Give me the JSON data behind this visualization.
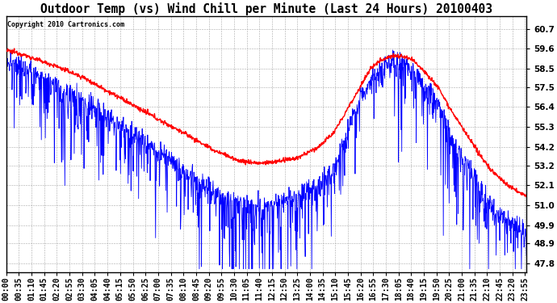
{
  "title": "Outdoor Temp (vs) Wind Chill per Minute (Last 24 Hours) 20100403",
  "copyright": "Copyright 2010 Cartronics.com",
  "ylim": [
    47.3,
    61.4
  ],
  "yticks": [
    47.8,
    48.9,
    49.9,
    51.0,
    52.1,
    53.2,
    54.2,
    55.3,
    56.4,
    57.5,
    58.5,
    59.6,
    60.7
  ],
  "x_labels": [
    "00:00",
    "00:35",
    "01:10",
    "01:45",
    "02:20",
    "02:55",
    "03:30",
    "04:05",
    "04:40",
    "05:15",
    "05:50",
    "06:25",
    "07:00",
    "07:35",
    "08:10",
    "08:45",
    "09:20",
    "09:55",
    "10:30",
    "11:05",
    "11:40",
    "12:15",
    "12:50",
    "13:25",
    "14:00",
    "14:35",
    "15:10",
    "15:45",
    "16:20",
    "16:55",
    "17:30",
    "18:05",
    "18:40",
    "19:15",
    "19:50",
    "20:25",
    "21:00",
    "21:35",
    "22:10",
    "22:45",
    "23:20",
    "23:55"
  ],
  "outdoor_color": "#FF0000",
  "windchill_color": "#0000FF",
  "background_color": "#FFFFFF",
  "grid_color": "#AAAAAA",
  "title_fontsize": 10.5,
  "tick_fontsize": 7,
  "outdoor_lw": 1.0,
  "windchill_lw": 0.6,
  "outdoor_ctrl_x": [
    0.0,
    0.02,
    0.06,
    0.1,
    0.15,
    0.2,
    0.25,
    0.3,
    0.34,
    0.37,
    0.4,
    0.42,
    0.44,
    0.46,
    0.49,
    0.52,
    0.56,
    0.6,
    0.63,
    0.66,
    0.68,
    0.7,
    0.72,
    0.74,
    0.76,
    0.78,
    0.8,
    0.83,
    0.86,
    0.9,
    0.93,
    0.96,
    0.98,
    1.0
  ],
  "outdoor_ctrl_y": [
    59.5,
    59.4,
    59.0,
    58.6,
    58.0,
    57.2,
    56.4,
    55.6,
    55.0,
    54.5,
    54.0,
    53.8,
    53.5,
    53.4,
    53.3,
    53.4,
    53.6,
    54.2,
    55.0,
    56.5,
    57.5,
    58.5,
    59.0,
    59.2,
    59.2,
    59.0,
    58.5,
    57.5,
    56.0,
    54.2,
    53.0,
    52.2,
    51.8,
    51.5
  ],
  "windchill_ctrl_x": [
    0.0,
    0.02,
    0.06,
    0.1,
    0.15,
    0.2,
    0.25,
    0.3,
    0.34,
    0.37,
    0.4,
    0.42,
    0.44,
    0.46,
    0.49,
    0.52,
    0.56,
    0.6,
    0.63,
    0.66,
    0.68,
    0.7,
    0.72,
    0.74,
    0.76,
    0.78,
    0.8,
    0.83,
    0.86,
    0.9,
    0.93,
    0.96,
    0.98,
    1.0
  ],
  "windchill_ctrl_y": [
    59.0,
    58.8,
    58.2,
    57.5,
    56.8,
    55.8,
    54.8,
    53.8,
    53.0,
    52.3,
    51.8,
    51.5,
    51.2,
    51.1,
    51.0,
    51.2,
    51.5,
    52.2,
    53.2,
    55.2,
    56.8,
    57.8,
    58.5,
    58.9,
    58.9,
    58.6,
    57.8,
    56.5,
    54.5,
    52.5,
    51.0,
    50.2,
    49.8,
    49.5
  ]
}
